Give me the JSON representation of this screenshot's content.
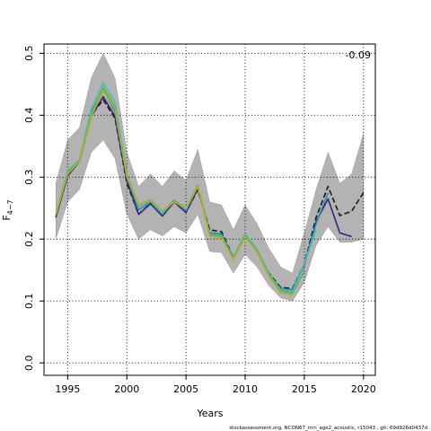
{
  "chart_data": {
    "type": "line",
    "xlabel": "Years",
    "ylabel": "F",
    "ylabel_sub": "4−7",
    "xlim": [
      1993,
      2021
    ],
    "ylim": [
      -0.02,
      0.515
    ],
    "x_ticks": [
      1995,
      2000,
      2005,
      2010,
      2015,
      2020
    ],
    "y_ticks": [
      0.0,
      0.1,
      0.2,
      0.3,
      0.4,
      0.5
    ],
    "y_tick_labels": [
      "0.0",
      "0.1",
      "0.2",
      "0.3",
      "0.4",
      "0.5"
    ],
    "grid": true,
    "annotation": "-0.09",
    "footer": "stockassessment.org, NCON67_rrrn_age2_acoustic, r15043 , git: 69d926d0437d",
    "band": {
      "x": [
        1994,
        1995,
        1996,
        1997,
        1998,
        1999,
        2000,
        2001,
        2002,
        2003,
        2004,
        2005,
        2006,
        2007,
        2008,
        2009,
        2010,
        2011,
        2012,
        2013,
        2014,
        2015,
        2016,
        2017,
        2018,
        2019,
        2020
      ],
      "lower": [
        0.2,
        0.26,
        0.28,
        0.34,
        0.36,
        0.33,
        0.24,
        0.2,
        0.215,
        0.205,
        0.22,
        0.21,
        0.24,
        0.18,
        0.178,
        0.145,
        0.175,
        0.155,
        0.125,
        0.105,
        0.1,
        0.13,
        0.19,
        0.22,
        0.195,
        0.195,
        0.2
      ],
      "upper": [
        0.29,
        0.36,
        0.38,
        0.46,
        0.5,
        0.46,
        0.34,
        0.285,
        0.305,
        0.285,
        0.31,
        0.295,
        0.345,
        0.26,
        0.255,
        0.215,
        0.255,
        0.225,
        0.185,
        0.155,
        0.145,
        0.21,
        0.28,
        0.34,
        0.29,
        0.305,
        0.37
      ]
    },
    "series": [
      {
        "color": "#1a1a1a",
        "dash": "6,3",
        "width": 1.6,
        "x": [
          1994,
          1995,
          1996,
          1997,
          1998,
          1999,
          2000,
          2001,
          2002,
          2003,
          2004,
          2005,
          2006,
          2007,
          2008,
          2009,
          2010,
          2011,
          2012,
          2013,
          2014,
          2015,
          2016,
          2017,
          2018,
          2019,
          2020
        ],
        "values": [
          0.235,
          0.305,
          0.325,
          0.4,
          0.425,
          0.395,
          0.29,
          0.24,
          0.258,
          0.238,
          0.26,
          0.243,
          0.28,
          0.215,
          0.212,
          0.17,
          0.205,
          0.182,
          0.145,
          0.122,
          0.12,
          0.16,
          0.235,
          0.285,
          0.238,
          0.245,
          0.275
        ]
      },
      {
        "color": "#3b1f8c",
        "dash": "",
        "width": 1.6,
        "x": [
          1994,
          1995,
          1996,
          1997,
          1998,
          1999,
          2000,
          2001,
          2002,
          2003,
          2004,
          2005,
          2006,
          2007,
          2008,
          2009,
          2010,
          2011,
          2012,
          2013,
          2014,
          2015,
          2016,
          2017,
          2018,
          2019
        ],
        "values": [
          0.235,
          0.302,
          0.325,
          0.398,
          0.43,
          0.398,
          0.295,
          0.24,
          0.257,
          0.237,
          0.26,
          0.243,
          0.282,
          0.21,
          0.208,
          0.168,
          0.207,
          0.18,
          0.142,
          0.12,
          0.118,
          0.158,
          0.228,
          0.265,
          0.21,
          0.204
        ]
      },
      {
        "color": "#2c8fa6",
        "dash": "",
        "width": 1.6,
        "x": [
          1994,
          1995,
          1996,
          1997,
          1998,
          1999,
          2000,
          2001,
          2002,
          2003,
          2004,
          2005,
          2006,
          2007,
          2008,
          2009,
          2010,
          2011,
          2012,
          2013,
          2014,
          2015,
          2016,
          2017
        ],
        "values": [
          0.237,
          0.306,
          0.327,
          0.405,
          0.443,
          0.405,
          0.3,
          0.247,
          0.26,
          0.24,
          0.262,
          0.246,
          0.285,
          0.21,
          0.208,
          0.17,
          0.208,
          0.182,
          0.143,
          0.12,
          0.118,
          0.16,
          0.225,
          0.275
        ]
      },
      {
        "color": "#3fbfbf",
        "dash": "",
        "width": 1.6,
        "x": [
          1994,
          1995,
          1996,
          1997,
          1998,
          1999,
          2000,
          2001,
          2002,
          2003,
          2004,
          2005,
          2006,
          2007,
          2008,
          2009,
          2010,
          2011,
          2012,
          2013,
          2014,
          2015,
          2016
        ],
        "values": [
          0.24,
          0.31,
          0.328,
          0.41,
          0.452,
          0.42,
          0.305,
          0.252,
          0.262,
          0.242,
          0.263,
          0.248,
          0.287,
          0.208,
          0.205,
          0.17,
          0.208,
          0.184,
          0.144,
          0.118,
          0.116,
          0.16,
          0.215
        ]
      },
      {
        "color": "#5ab25a",
        "dash": "",
        "width": 1.6,
        "x": [
          1994,
          1995,
          1996,
          1997,
          1998,
          1999,
          2000,
          2001,
          2002,
          2003,
          2004,
          2005,
          2006,
          2007,
          2008,
          2009,
          2010,
          2011,
          2012,
          2013,
          2014,
          2015
        ],
        "values": [
          0.24,
          0.308,
          0.326,
          0.402,
          0.445,
          0.412,
          0.302,
          0.255,
          0.263,
          0.245,
          0.262,
          0.25,
          0.287,
          0.207,
          0.204,
          0.168,
          0.205,
          0.182,
          0.142,
          0.116,
          0.113,
          0.148
        ]
      },
      {
        "color": "#b8b01c",
        "dash": "",
        "width": 1.6,
        "x": [
          1994,
          1995,
          1996,
          1997,
          1998,
          1999,
          2000,
          2001,
          2002,
          2003,
          2004,
          2005,
          2006,
          2007,
          2008,
          2009,
          2010,
          2011,
          2012,
          2013,
          2014
        ],
        "values": [
          0.24,
          0.305,
          0.325,
          0.398,
          0.44,
          0.41,
          0.3,
          0.255,
          0.262,
          0.245,
          0.26,
          0.25,
          0.285,
          0.205,
          0.202,
          0.167,
          0.203,
          0.18,
          0.14,
          0.113,
          0.11
        ]
      }
    ]
  }
}
